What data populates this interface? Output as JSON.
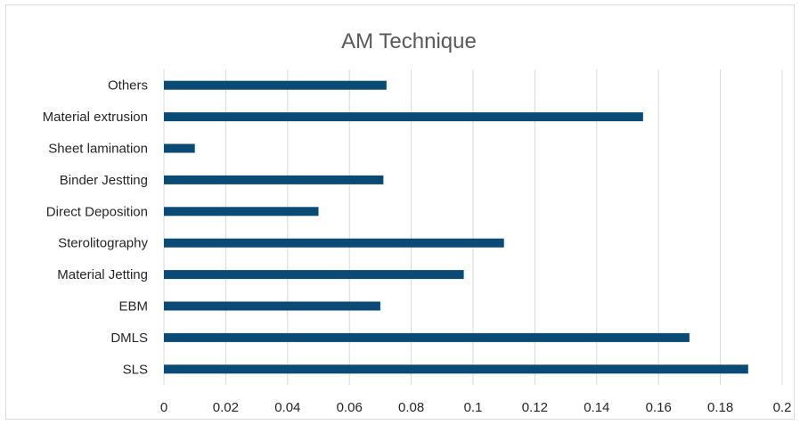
{
  "chart_data": {
    "type": "bar",
    "orientation": "horizontal",
    "title": "AM Technique",
    "xlabel": "",
    "ylabel": "",
    "categories": [
      "Others",
      "Material extrusion",
      "Sheet lamination",
      "Binder Jestting",
      "Direct Deposition",
      "Sterolitography",
      "Material Jetting",
      "EBM",
      "DMLS",
      "SLS"
    ],
    "values": [
      0.072,
      0.155,
      0.01,
      0.071,
      0.05,
      0.11,
      0.097,
      0.07,
      0.17,
      0.189
    ],
    "xlim": [
      0,
      0.2
    ],
    "xticks": [
      "0",
      "0.02",
      "0.04",
      "0.06",
      "0.08",
      "0.1",
      "0.12",
      "0.14",
      "0.16",
      "0.18",
      "0.2"
    ],
    "grid": "vertical",
    "legend": "none",
    "bar_color": "#0b4a75",
    "grid_color": "#d9d9d9"
  }
}
